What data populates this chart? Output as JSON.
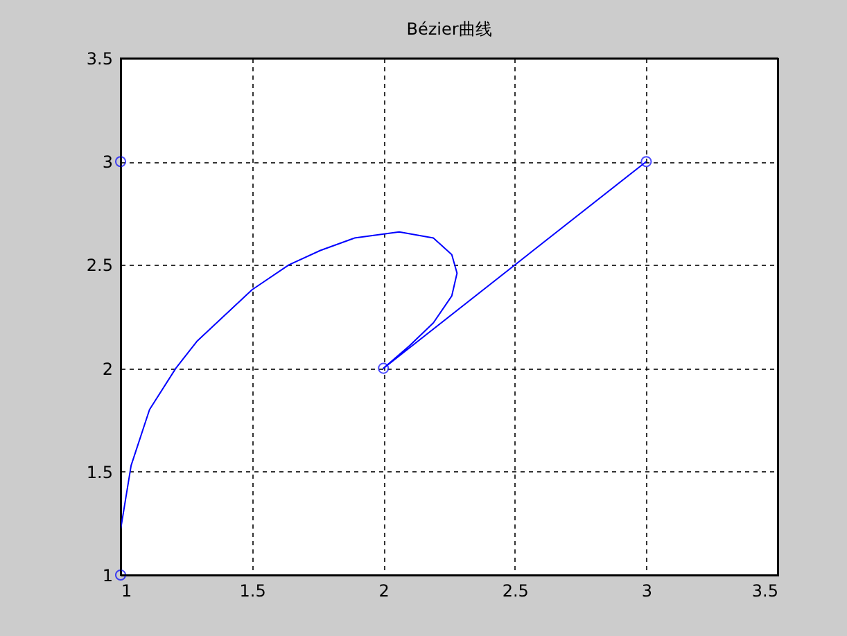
{
  "chart_data": {
    "type": "line",
    "title": "Bézier曲线",
    "series": [
      {
        "color": "#0000ff",
        "marker": "none",
        "line_style": "solid",
        "x": [
          1,
          1.0,
          1.04,
          1.11,
          1.21,
          1.29,
          1.5,
          1.64,
          1.76,
          1.89,
          2.06,
          2.19,
          2.26,
          2.28,
          2.26,
          2.19,
          2.1,
          2,
          3
        ],
        "values": [
          1,
          1.22,
          1.53,
          1.8,
          2.0,
          2.13,
          2.38,
          2.5,
          2.57,
          2.63,
          2.66,
          2.63,
          2.55,
          2.46,
          2.35,
          2.22,
          2.11,
          2,
          3
        ]
      },
      {
        "type": "scatter",
        "color": "#0000ff",
        "marker": "circle",
        "x": [
          1,
          1,
          3,
          2
        ],
        "values": [
          1,
          3,
          3,
          2
        ]
      }
    ],
    "xlim": [
      1,
      3.5
    ],
    "ylim": [
      1,
      3.5
    ],
    "xticks": [
      1,
      1.5,
      2,
      2.5,
      3,
      3.5
    ],
    "yticks": [
      1,
      1.5,
      2,
      2.5,
      3,
      3.5
    ],
    "grid": true
  }
}
